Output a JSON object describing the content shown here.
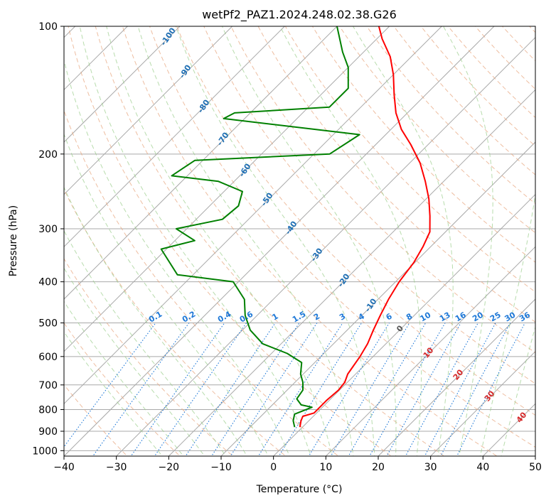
{
  "chart_data": {
    "type": "line",
    "subtype": "skew-t-log-p",
    "title": "wetPf2_PAZ1.2024.248.02.38.G26",
    "xlabel": "Temperature (°C)",
    "ylabel": "Pressure (hPa)",
    "xlim": [
      -40,
      50
    ],
    "ylim": [
      1030,
      100
    ],
    "y_scale": "log",
    "x_ticks": [
      -40,
      -30,
      -20,
      -10,
      0,
      10,
      20,
      30,
      40,
      50
    ],
    "y_ticks": [
      100,
      200,
      300,
      400,
      500,
      600,
      700,
      800,
      900,
      1000
    ],
    "grid": true,
    "series": [
      {
        "color": "#ff0000",
        "points": [
          [
            -0.5,
            880
          ],
          [
            -1.5,
            850
          ],
          [
            -2,
            830
          ],
          [
            -0.5,
            815
          ],
          [
            -0.5,
            790
          ],
          [
            -0.5,
            760
          ],
          [
            -0.2,
            720
          ],
          [
            -0.5,
            690
          ],
          [
            -1.5,
            660
          ],
          [
            -2,
            630
          ],
          [
            -2.5,
            600
          ],
          [
            -3.5,
            560
          ],
          [
            -5,
            520
          ],
          [
            -6.5,
            480
          ],
          [
            -8,
            440
          ],
          [
            -9.3,
            400
          ],
          [
            -10.2,
            360
          ],
          [
            -11.5,
            330
          ],
          [
            -13,
            305
          ],
          [
            -16,
            280
          ],
          [
            -19.5,
            255
          ],
          [
            -23.5,
            232
          ],
          [
            -28,
            210
          ],
          [
            -33.3,
            190
          ],
          [
            -38,
            175
          ],
          [
            -42.2,
            160
          ],
          [
            -46,
            145
          ],
          [
            -50,
            130
          ],
          [
            -54,
            118
          ],
          [
            -59,
            107
          ],
          [
            -62,
            100
          ]
        ]
      },
      {
        "color": "#008000",
        "points": [
          [
            -1.5,
            880
          ],
          [
            -3,
            850
          ],
          [
            -4,
            820
          ],
          [
            -2,
            790
          ],
          [
            -4.5,
            780
          ],
          [
            -6.5,
            755
          ],
          [
            -7,
            720
          ],
          [
            -8.5,
            690
          ],
          [
            -10.5,
            660
          ],
          [
            -12.5,
            620
          ],
          [
            -17,
            590
          ],
          [
            -23.5,
            560
          ],
          [
            -28.5,
            520
          ],
          [
            -32.3,
            480
          ],
          [
            -35.5,
            440
          ],
          [
            -41,
            400
          ],
          [
            -53,
            385
          ],
          [
            -61,
            335
          ],
          [
            -56.2,
            320
          ],
          [
            -62,
            300
          ],
          [
            -55,
            285
          ],
          [
            -54.5,
            265
          ],
          [
            -56.5,
            245
          ],
          [
            -63,
            232
          ],
          [
            -73,
            225
          ],
          [
            -71.5,
            207
          ],
          [
            -47,
            200
          ],
          [
            -45,
            180
          ],
          [
            -74,
            165
          ],
          [
            -73,
            160
          ],
          [
            -56,
            155
          ],
          [
            -56,
            140
          ],
          [
            -60,
            125
          ],
          [
            -64,
            115
          ],
          [
            -70,
            100
          ]
        ]
      }
    ],
    "dry_adiabat_labels": [
      "-100",
      "-90",
      "-80",
      "-70",
      "-60",
      "-50",
      "-40",
      "-30",
      "-20",
      "-10"
    ],
    "mixing_ratio_labels": [
      "0.1",
      "0.2",
      "0.4",
      "0.6",
      "1",
      "1.5",
      "2",
      "3",
      "4",
      "6",
      "8",
      "10",
      "13",
      "16",
      "20",
      "25",
      "30",
      "36"
    ],
    "moist_adiabat_labels": [
      "0",
      "10",
      "20",
      "30",
      "40"
    ],
    "colors": {
      "temperature": "#ff0000",
      "dewpoint": "#008000",
      "isotherm": "#a9a9a9",
      "dry_adiabat": "#e8a882",
      "moist_adiabat": "#9acd8a",
      "mixing_ratio": "#1e78d7",
      "dry_label": "#1f6fb4",
      "moist_label": "#d62728"
    }
  }
}
